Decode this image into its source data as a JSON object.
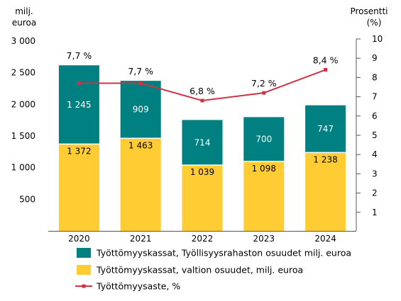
{
  "chart_data": {
    "type": "bar",
    "stacked": true,
    "categories": [
      "2020",
      "2021",
      "2022",
      "2023",
      "2024"
    ],
    "left_axis": {
      "label_lines": [
        "milj.",
        "euroa"
      ],
      "range": [
        0,
        3000
      ],
      "ticks": [
        500,
        1000,
        1500,
        2000,
        2500,
        3000
      ],
      "tick_labels": [
        "500",
        "1 000",
        "1 500",
        "2 000",
        "2 500",
        "3 000"
      ]
    },
    "right_axis": {
      "label_lines": [
        "Prosentti",
        "(%)"
      ],
      "range": [
        0,
        10
      ],
      "ticks": [
        1,
        2,
        3,
        4,
        5,
        6,
        7,
        8,
        9,
        10
      ],
      "tick_labels": [
        "1",
        "2",
        "3",
        "4",
        "5",
        "6",
        "7",
        "8",
        "9",
        "10"
      ]
    },
    "series": [
      {
        "name": "Työttömyyskassat, valtion osuudet, milj. euroa",
        "kind": "bar",
        "axis": "left",
        "color": "#ffcc33",
        "values": [
          1372,
          1463,
          1039,
          1098,
          1238
        ],
        "value_labels": [
          "1 372",
          "1 463",
          "1 039",
          "1 098",
          "1 238"
        ]
      },
      {
        "name": "Työttömyyskassat, Työllisyysrahaston osuudet milj. euroa",
        "kind": "bar",
        "axis": "left",
        "color": "#008080",
        "values": [
          1245,
          909,
          714,
          700,
          747
        ],
        "value_labels": [
          "1 245",
          "909",
          "714",
          "700",
          "747"
        ]
      },
      {
        "name": "Työttömyysaste, %",
        "kind": "line",
        "axis": "right",
        "color": "#cc3344",
        "values": [
          7.7,
          7.7,
          6.8,
          7.2,
          8.4
        ],
        "value_labels": [
          "7,7 %",
          "7,7 %",
          "6,8 %",
          "7,2 %",
          "8,4 %"
        ]
      }
    ],
    "legend": {
      "position": "bottom",
      "entries": [
        "Työttömyyskassat, Työllisyysrahaston osuudet milj. euroa",
        "Työttömyyskassat, valtion osuudet, milj. euroa",
        "Työttömyysaste, %"
      ]
    },
    "grid": false
  }
}
